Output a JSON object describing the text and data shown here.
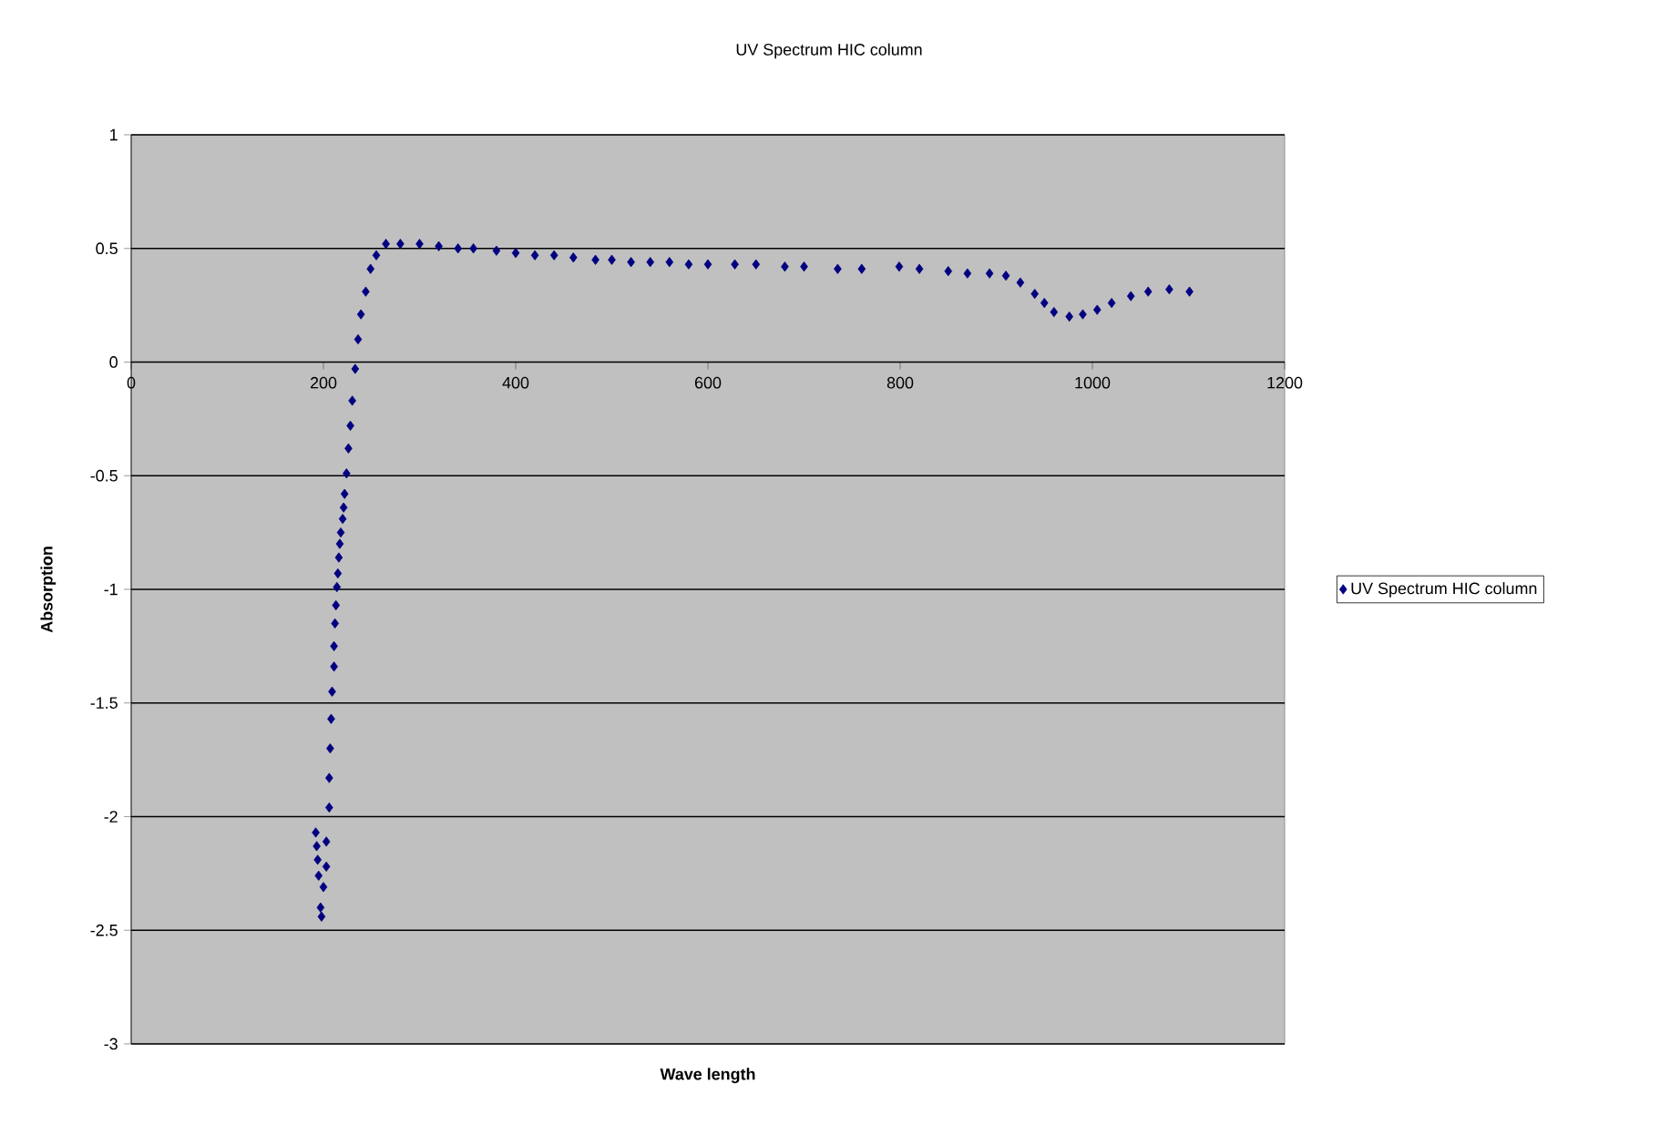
{
  "chart_data": {
    "type": "scatter",
    "title": "UV Spectrum HIC column",
    "xlabel": "Wave length",
    "ylabel": "Absorption",
    "xlim": [
      0,
      1200
    ],
    "xticks": [
      0,
      200,
      400,
      600,
      800,
      1000,
      1200
    ],
    "ylim": [
      -3,
      1
    ],
    "yticks": [
      -3,
      -2.5,
      -2,
      -1.5,
      -1,
      -0.5,
      0,
      0.5,
      1
    ],
    "grid": "y",
    "legend": "right",
    "marker": "diamond",
    "series": [
      {
        "name": "UV Spectrum HIC column",
        "color": "#000080",
        "x": [
          192,
          193,
          194,
          195,
          197,
          198,
          200,
          203,
          203,
          206,
          206,
          207,
          208,
          209,
          211,
          211,
          212,
          213,
          214,
          215,
          216,
          217,
          218,
          220,
          221,
          222,
          224,
          226,
          228,
          230,
          233,
          236,
          239,
          244,
          249,
          255,
          265,
          280,
          300,
          320,
          340,
          356,
          380,
          400,
          420,
          440,
          460,
          483,
          500,
          520,
          540,
          560,
          580,
          600,
          628,
          650,
          680,
          700,
          735,
          760,
          799,
          820,
          850,
          870,
          893,
          910,
          925,
          940,
          950,
          960,
          976,
          990,
          1005,
          1020,
          1040,
          1058,
          1080,
          1101
        ],
        "values": [
          -2.07,
          -2.13,
          -2.19,
          -2.26,
          -2.4,
          -2.44,
          -2.31,
          -2.11,
          -2.22,
          -1.96,
          -1.83,
          -1.7,
          -1.57,
          -1.45,
          -1.34,
          -1.25,
          -1.15,
          -1.07,
          -0.99,
          -0.93,
          -0.86,
          -0.8,
          -0.75,
          -0.69,
          -0.64,
          -0.58,
          -0.49,
          -0.38,
          -0.28,
          -0.17,
          -0.03,
          0.1,
          0.21,
          0.31,
          0.41,
          0.47,
          0.52,
          0.52,
          0.52,
          0.51,
          0.5,
          0.5,
          0.49,
          0.48,
          0.47,
          0.47,
          0.46,
          0.45,
          0.45,
          0.44,
          0.44,
          0.44,
          0.43,
          0.43,
          0.43,
          0.43,
          0.42,
          0.42,
          0.41,
          0.41,
          0.42,
          0.41,
          0.4,
          0.39,
          0.39,
          0.38,
          0.35,
          0.3,
          0.26,
          0.22,
          0.2,
          0.21,
          0.23,
          0.26,
          0.29,
          0.31,
          0.32,
          0.31
        ]
      }
    ]
  }
}
